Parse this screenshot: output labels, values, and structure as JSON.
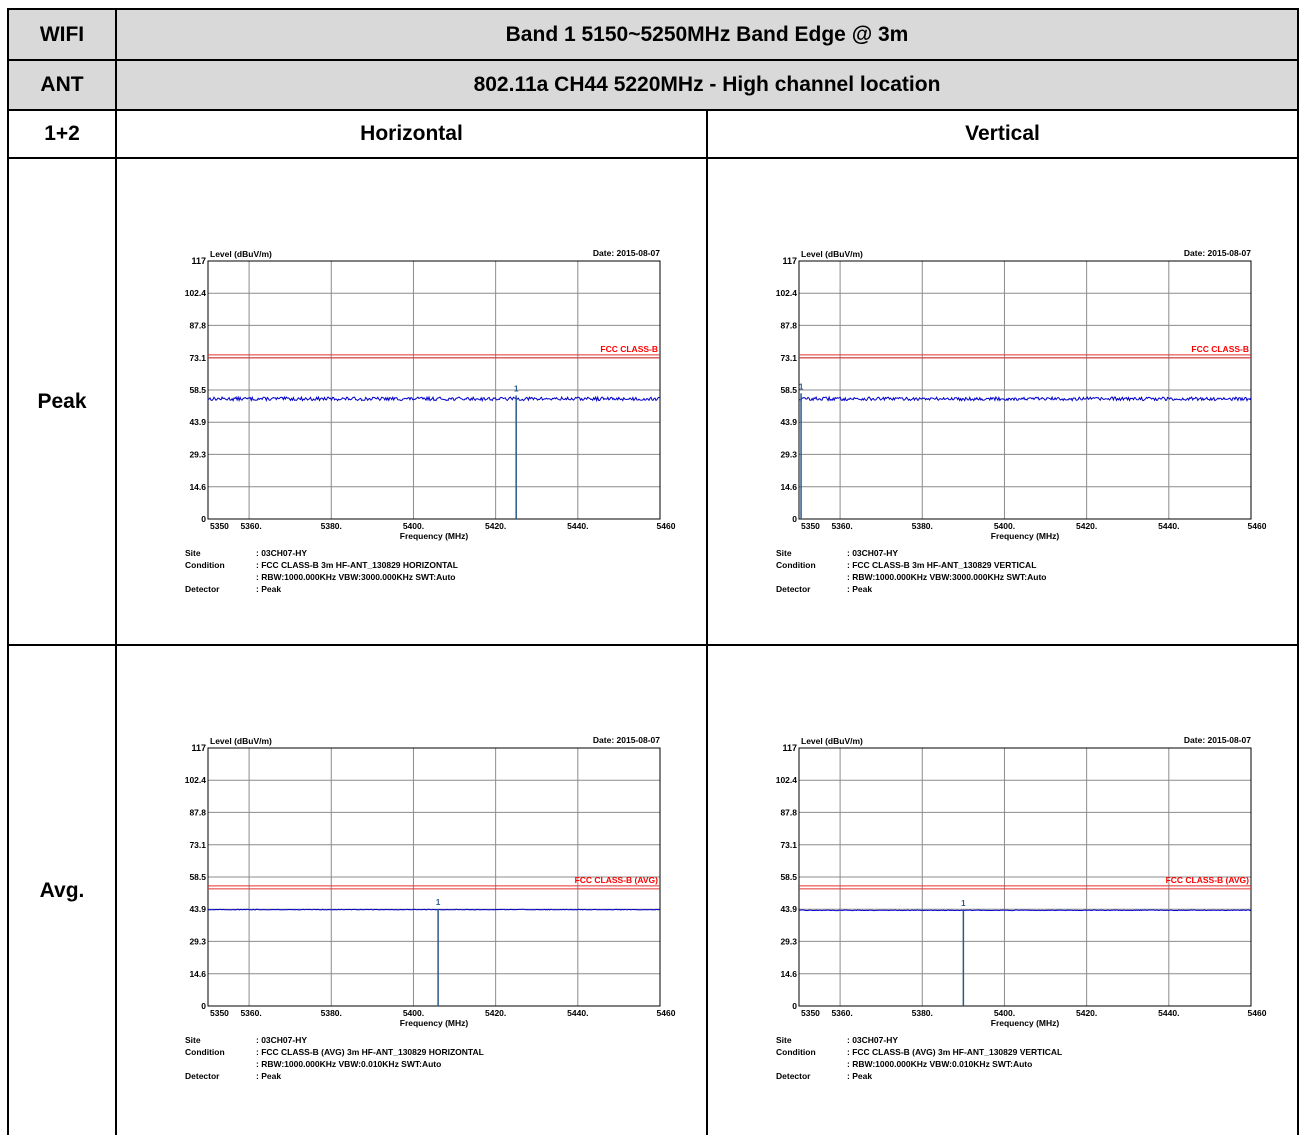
{
  "table": {
    "r1c1": "WIFI",
    "r1c2": "Band 1 5150~5250MHz Band Edge @ 3m",
    "r2c1": "ANT",
    "r2c2": "802.11a CH44 5220MHz - High channel location",
    "r3c1": "1+2",
    "col_h": "Horizontal",
    "col_v": "Vertical",
    "row_peak": "Peak",
    "row_avg": "Avg."
  },
  "chart_data": [
    {
      "id": "peak-h",
      "type": "line",
      "ylabel": "Level (dBuV/m)",
      "xlabel": "Frequency (MHz)",
      "date": "Date: 2015-08-07",
      "yticks": [
        "117",
        "102.4",
        "87.8",
        "73.1",
        "58.5",
        "43.9",
        "29.3",
        "14.6",
        "0"
      ],
      "xticks": [
        "5350",
        "5360.",
        "5380.",
        "5400.",
        "5420.",
        "5440.",
        "5460"
      ],
      "xlim": [
        5350,
        5460
      ],
      "ylim": [
        0,
        117
      ],
      "limit_label": "FCC CLASS-B",
      "limit": 74,
      "series": [
        {
          "values": {
            "level": 54.5,
            "noise": 0.8
          }
        }
      ],
      "marker": {
        "label": "1",
        "x": 5425,
        "y": 56
      },
      "footer": {
        "site_label": "Site",
        "site": ": 03CH07-HY",
        "condition_label": "Condition",
        "condition": ": FCC CLASS-B 3m HF-ANT_130829 HORIZONTAL",
        "condition2": ": RBW:1000.000KHz VBW:3000.000KHz SWT:Auto",
        "detector_label": "Detector",
        "detector": ": Peak"
      }
    },
    {
      "id": "peak-v",
      "type": "line",
      "ylabel": "Level (dBuV/m)",
      "xlabel": "Frequency (MHz)",
      "date": "Date: 2015-08-07",
      "yticks": [
        "117",
        "102.4",
        "87.8",
        "73.1",
        "58.5",
        "43.9",
        "29.3",
        "14.6",
        "0"
      ],
      "xticks": [
        "5350",
        "5360.",
        "5380.",
        "5400.",
        "5420.",
        "5440.",
        "5460"
      ],
      "xlim": [
        5350,
        5460
      ],
      "ylim": [
        0,
        117
      ],
      "limit_label": "FCC CLASS-B",
      "limit": 74,
      "series": [
        {
          "values": {
            "level": 54.5,
            "noise": 0.8
          }
        }
      ],
      "marker": {
        "label": "1",
        "x": 5350.5,
        "y": 57
      },
      "footer": {
        "site_label": "Site",
        "site": ": 03CH07-HY",
        "condition_label": "Condition",
        "condition": ": FCC CLASS-B 3m HF-ANT_130829 VERTICAL",
        "condition2": ": RBW:1000.000KHz VBW:3000.000KHz SWT:Auto",
        "detector_label": "Detector",
        "detector": ": Peak"
      }
    },
    {
      "id": "avg-h",
      "type": "line",
      "ylabel": "Level (dBuV/m)",
      "xlabel": "Frequency (MHz)",
      "date": "Date: 2015-08-07",
      "yticks": [
        "117",
        "102.4",
        "87.8",
        "73.1",
        "58.5",
        "43.9",
        "29.3",
        "14.6",
        "0"
      ],
      "xticks": [
        "5350",
        "5360.",
        "5380.",
        "5400.",
        "5420.",
        "5440.",
        "5460"
      ],
      "xlim": [
        5350,
        5460
      ],
      "ylim": [
        0,
        117
      ],
      "limit_label": "FCC CLASS-B (AVG)",
      "limit": 54,
      "series": [
        {
          "values": {
            "level": 43.7,
            "noise": 0.15
          }
        }
      ],
      "marker": {
        "label": "1",
        "x": 5406,
        "y": 44
      },
      "footer": {
        "site_label": "Site",
        "site": ": 03CH07-HY",
        "condition_label": "Condition",
        "condition": ": FCC CLASS-B (AVG) 3m HF-ANT_130829 HORIZONTAL",
        "condition2": ": RBW:1000.000KHz VBW:0.010KHz SWT:Auto",
        "detector_label": "Detector",
        "detector": ": Peak"
      }
    },
    {
      "id": "avg-v",
      "type": "line",
      "ylabel": "Level (dBuV/m)",
      "xlabel": "Frequency (MHz)",
      "date": "Date: 2015-08-07",
      "yticks": [
        "117",
        "102.4",
        "87.8",
        "73.1",
        "58.5",
        "43.9",
        "29.3",
        "14.6",
        "0"
      ],
      "xticks": [
        "5350",
        "5360.",
        "5380.",
        "5400.",
        "5420.",
        "5440.",
        "5460"
      ],
      "xlim": [
        5350,
        5460
      ],
      "ylim": [
        0,
        117
      ],
      "limit_label": "FCC CLASS-B (AVG)",
      "limit": 54,
      "series": [
        {
          "values": {
            "level": 43.4,
            "noise": 0.15
          }
        }
      ],
      "marker": {
        "label": "1",
        "x": 5390,
        "y": 43.5
      },
      "footer": {
        "site_label": "Site",
        "site": ": 03CH07-HY",
        "condition_label": "Condition",
        "condition": ": FCC CLASS-B (AVG) 3m HF-ANT_130829 VERTICAL",
        "condition2": ": RBW:1000.000KHz VBW:0.010KHz SWT:Auto",
        "detector_label": "Detector",
        "detector": ": Peak"
      }
    }
  ]
}
